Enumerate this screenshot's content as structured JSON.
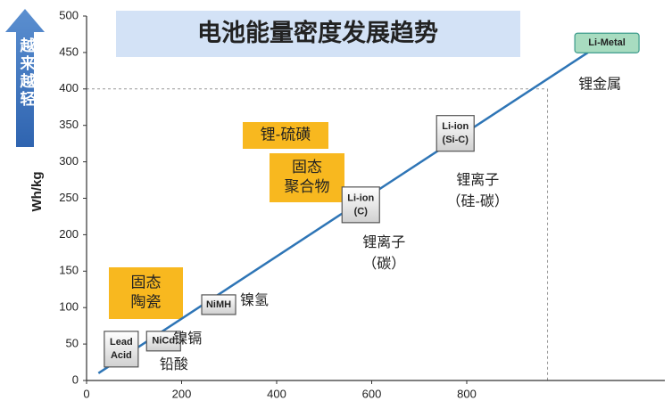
{
  "chart_data": {
    "type": "annotated-scatter",
    "title": "电池能量密度发展趋势",
    "y_label": "Wh/kg",
    "arrow_text": "越来越轻",
    "xlim": [
      0,
      1200
    ],
    "xticks": [
      0,
      200,
      400,
      600,
      800
    ],
    "ylim": [
      0,
      500
    ],
    "yticks": [
      0,
      50,
      100,
      150,
      200,
      250,
      300,
      350,
      400,
      450,
      500
    ],
    "reference_x": 970,
    "reference_y": 400,
    "trend": {
      "x": [
        25,
        1055
      ],
      "y": [
        10,
        450
      ],
      "color": "#2e75b6"
    },
    "points": [
      {
        "label": [
          "Lead",
          "Acid"
        ],
        "name": [
          "铅酸"
        ],
        "x": 73,
        "y": 43
      },
      {
        "label": [
          "NiCd"
        ],
        "name": [
          "镍镉"
        ],
        "x": 162,
        "y": 54
      },
      {
        "label": [
          "NiMH"
        ],
        "name": [
          "镍氢"
        ],
        "x": 278,
        "y": 104
      },
      {
        "label": [
          "Li-ion",
          "(C)"
        ],
        "name": [
          "锂离子",
          "（碳）"
        ],
        "x": 577,
        "y": 241
      },
      {
        "label": [
          "Li-ion",
          "(Si-C)"
        ],
        "name": [
          "锂离子",
          "（硅-碳）"
        ],
        "x": 776,
        "y": 339
      },
      {
        "label": [
          "Li-Metal"
        ],
        "name": [
          "锂金属"
        ],
        "x": 1095,
        "y": 463
      }
    ],
    "callouts": [
      {
        "lines": [
          "固态",
          "陶瓷"
        ]
      },
      {
        "lines": [
          "锂-硫磺"
        ]
      },
      {
        "lines": [
          "固态",
          "聚合物"
        ]
      }
    ]
  }
}
